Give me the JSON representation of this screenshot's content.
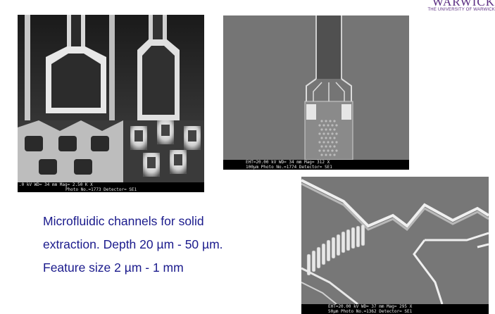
{
  "logo": {
    "name": "WARWICK",
    "subtitle": "THE UNIVERSITY OF WARWICK"
  },
  "images": {
    "sem1": {
      "line1": ".0 kV    WD= 34 mm    Mag= 2.50 K X",
      "line2": "Photo No.=1773   Detector= SE1"
    },
    "sem2": {
      "line1": "EHT=20.00 kV   WD= 34 mm    Mag=  312  X",
      "line2": "100µm         Photo No.=1774  Detector= SE1"
    },
    "sem3": {
      "line1": "EHT=20.00 kV    WD= 37 mm    Mag=  295  X",
      "line2": "50µm        Photo No.=1362   Detector= SE1"
    }
  },
  "text": {
    "line1": "Microfluidic channels for solid",
    "line2": "extraction. Depth 20 µm - 50 µm.",
    "line3": "Feature size 2 µm - 1 mm"
  },
  "colors": {
    "text": "#1a1a8c",
    "logo": "#5b2d82"
  }
}
